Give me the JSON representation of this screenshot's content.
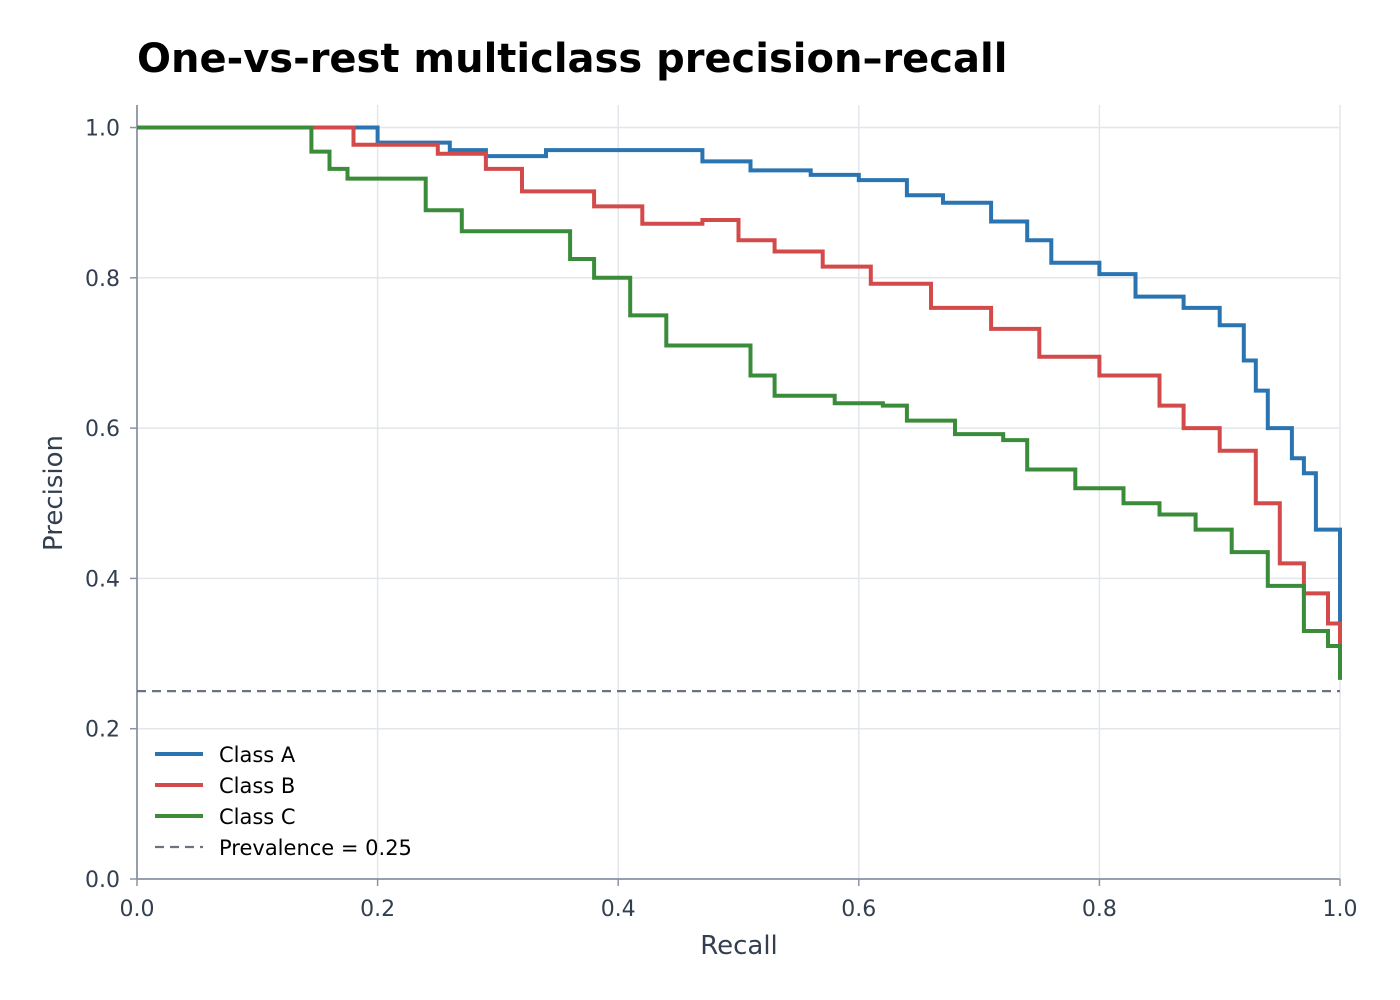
{
  "chart_data": {
    "type": "line",
    "title": "One-vs-rest multiclass precision–recall",
    "xlabel": "Recall",
    "ylabel": "Precision",
    "xlim": [
      0.0,
      1.0
    ],
    "ylim": [
      0.0,
      1.0
    ],
    "xticks": [
      "0.0",
      "0.2",
      "0.4",
      "0.6",
      "0.8",
      "1.0"
    ],
    "yticks": [
      "0.0",
      "0.2",
      "0.4",
      "0.6",
      "0.8",
      "1.0"
    ],
    "grid": true,
    "legend_position": "lower-left",
    "step": true,
    "series": [
      {
        "name": "Class A",
        "color": "#2a74b2",
        "x": [
          0.0,
          0.2,
          0.2,
          0.26,
          0.26,
          0.29,
          0.29,
          0.34,
          0.34,
          0.47,
          0.47,
          0.51,
          0.51,
          0.56,
          0.56,
          0.6,
          0.6,
          0.64,
          0.64,
          0.67,
          0.67,
          0.71,
          0.71,
          0.74,
          0.74,
          0.76,
          0.76,
          0.8,
          0.8,
          0.83,
          0.83,
          0.87,
          0.87,
          0.9,
          0.9,
          0.92,
          0.92,
          0.93,
          0.93,
          0.94,
          0.94,
          0.96,
          0.96,
          0.97,
          0.97,
          0.98,
          0.98,
          1.0,
          1.0
        ],
        "y": [
          1.0,
          1.0,
          0.98,
          0.98,
          0.97,
          0.97,
          0.962,
          0.962,
          0.97,
          0.97,
          0.955,
          0.955,
          0.943,
          0.943,
          0.937,
          0.937,
          0.93,
          0.93,
          0.91,
          0.91,
          0.9,
          0.9,
          0.875,
          0.875,
          0.85,
          0.85,
          0.82,
          0.82,
          0.805,
          0.805,
          0.775,
          0.775,
          0.76,
          0.76,
          0.737,
          0.737,
          0.69,
          0.69,
          0.65,
          0.65,
          0.6,
          0.6,
          0.56,
          0.56,
          0.54,
          0.54,
          0.465,
          0.465,
          0.34
        ]
      },
      {
        "name": "Class B",
        "color": "#d24b4a",
        "x": [
          0.0,
          0.18,
          0.18,
          0.25,
          0.25,
          0.29,
          0.29,
          0.32,
          0.32,
          0.38,
          0.38,
          0.42,
          0.42,
          0.47,
          0.47,
          0.5,
          0.5,
          0.53,
          0.53,
          0.57,
          0.57,
          0.61,
          0.61,
          0.66,
          0.66,
          0.71,
          0.71,
          0.75,
          0.75,
          0.8,
          0.8,
          0.85,
          0.85,
          0.87,
          0.87,
          0.9,
          0.9,
          0.93,
          0.93,
          0.95,
          0.95,
          0.97,
          0.97,
          0.99,
          0.99,
          1.0,
          1.0
        ],
        "y": [
          1.0,
          1.0,
          0.977,
          0.977,
          0.965,
          0.965,
          0.945,
          0.945,
          0.915,
          0.915,
          0.895,
          0.895,
          0.872,
          0.872,
          0.877,
          0.877,
          0.85,
          0.85,
          0.835,
          0.835,
          0.815,
          0.815,
          0.792,
          0.792,
          0.76,
          0.76,
          0.732,
          0.732,
          0.695,
          0.695,
          0.67,
          0.67,
          0.63,
          0.63,
          0.6,
          0.6,
          0.57,
          0.57,
          0.5,
          0.5,
          0.42,
          0.42,
          0.38,
          0.38,
          0.34,
          0.34,
          0.3
        ]
      },
      {
        "name": "Class C",
        "color": "#3a8c3a",
        "x": [
          0.0,
          0.145,
          0.145,
          0.16,
          0.16,
          0.175,
          0.175,
          0.24,
          0.24,
          0.27,
          0.27,
          0.31,
          0.31,
          0.36,
          0.36,
          0.38,
          0.38,
          0.41,
          0.41,
          0.44,
          0.44,
          0.46,
          0.46,
          0.51,
          0.51,
          0.53,
          0.53,
          0.58,
          0.58,
          0.62,
          0.62,
          0.64,
          0.64,
          0.68,
          0.68,
          0.72,
          0.72,
          0.74,
          0.74,
          0.78,
          0.78,
          0.82,
          0.82,
          0.85,
          0.85,
          0.88,
          0.88,
          0.91,
          0.91,
          0.94,
          0.94,
          0.97,
          0.97,
          0.99,
          0.99,
          1.0,
          1.0
        ],
        "y": [
          1.0,
          1.0,
          0.968,
          0.968,
          0.945,
          0.945,
          0.932,
          0.932,
          0.89,
          0.89,
          0.862,
          0.862,
          0.862,
          0.862,
          0.825,
          0.825,
          0.8,
          0.8,
          0.75,
          0.75,
          0.71,
          0.71,
          0.71,
          0.71,
          0.67,
          0.67,
          0.643,
          0.643,
          0.633,
          0.633,
          0.63,
          0.63,
          0.61,
          0.61,
          0.592,
          0.592,
          0.584,
          0.584,
          0.545,
          0.545,
          0.52,
          0.52,
          0.5,
          0.5,
          0.485,
          0.485,
          0.465,
          0.465,
          0.435,
          0.435,
          0.39,
          0.39,
          0.33,
          0.33,
          0.31,
          0.31,
          0.265
        ]
      },
      {
        "name": "Prevalence = 0.25",
        "color": "#6b7280",
        "dashed": true,
        "x": [
          0.0,
          1.0
        ],
        "y": [
          0.25,
          0.25
        ]
      }
    ]
  }
}
